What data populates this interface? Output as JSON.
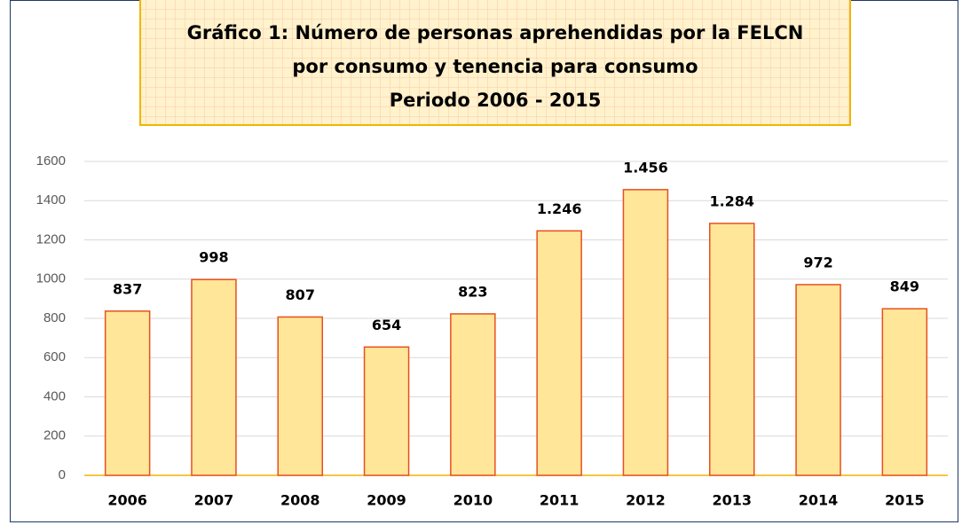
{
  "chart_data": {
    "type": "bar",
    "title": [
      "Gráfico 1: Número de personas aprehendidas por la FELCN",
      "por consumo y tenencia para consumo",
      "Periodo 2006 - 2015"
    ],
    "categories": [
      "2006",
      "2007",
      "2008",
      "2009",
      "2010",
      "2011",
      "2012",
      "2013",
      "2014",
      "2015"
    ],
    "values": [
      837,
      998,
      807,
      654,
      823,
      1246,
      1456,
      1284,
      972,
      849
    ],
    "value_labels": [
      "837",
      "998",
      "807",
      "654",
      "823",
      "1.246",
      "1.456",
      "1.284",
      "972",
      "849"
    ],
    "color": "#ffe699",
    "edge_color": "#e8501e",
    "ylim": [
      0,
      1600
    ],
    "yticks": [
      0,
      200,
      400,
      600,
      800,
      1000,
      1200,
      1400,
      1600
    ],
    "grid": true
  }
}
